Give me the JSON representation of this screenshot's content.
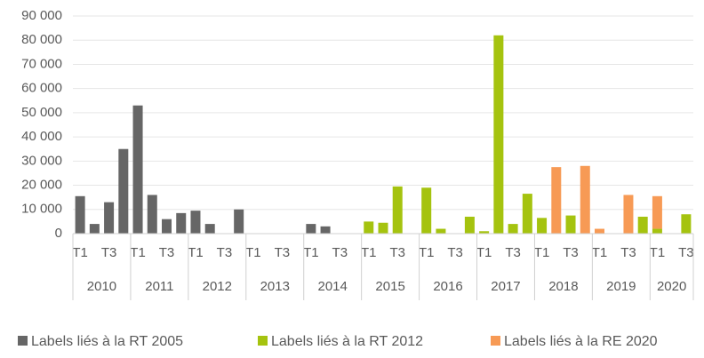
{
  "chart_data": {
    "type": "stacked_bar",
    "categories": [
      "T1",
      null,
      "T3",
      null,
      "T1",
      null,
      "T3",
      null,
      "T1",
      null,
      "T3",
      null,
      "T1",
      null,
      "T3",
      null,
      "T1",
      null,
      "T3",
      null,
      "T1",
      null,
      "T3",
      null,
      "T1",
      null,
      "T3",
      null,
      "T1",
      null,
      "T3",
      null,
      "T1",
      null,
      "T3",
      null,
      "T1",
      null,
      "T3",
      null,
      "T1",
      null,
      "T3"
    ],
    "year_labels": [
      "2010",
      "2011",
      "2012",
      "2013",
      "2014",
      "2015",
      "2016",
      "2017",
      "2018",
      "2019",
      "2020"
    ],
    "series": [
      {
        "name": "Labels liés à la RT 2005",
        "color": "#666666",
        "values": [
          15500,
          4000,
          13000,
          35000,
          53000,
          16000,
          6000,
          8500,
          9500,
          4000,
          0,
          10000,
          0,
          0,
          0,
          0,
          4000,
          3000,
          0,
          0,
          0,
          0,
          0,
          0,
          0,
          0,
          0,
          0,
          0,
          0,
          0,
          0,
          0,
          0,
          0,
          0,
          0,
          0,
          0,
          0,
          0,
          0,
          0
        ]
      },
      {
        "name": "Labels liés à la RT 2012",
        "color": "#a5c30f",
        "values": [
          0,
          0,
          0,
          0,
          0,
          0,
          0,
          0,
          0,
          0,
          0,
          0,
          0,
          0,
          0,
          0,
          0,
          0,
          0,
          0,
          5000,
          4500,
          19500,
          0,
          19000,
          2000,
          0,
          7000,
          1000,
          82000,
          4000,
          16500,
          6500,
          0,
          7500,
          0,
          0,
          0,
          0,
          7000,
          2000,
          0,
          8000
        ]
      },
      {
        "name": "Labels liés à la RE 2020",
        "color": "#f79a55",
        "values": [
          0,
          0,
          0,
          0,
          0,
          0,
          0,
          0,
          0,
          0,
          0,
          0,
          0,
          0,
          0,
          0,
          0,
          0,
          0,
          0,
          0,
          0,
          0,
          0,
          0,
          0,
          0,
          0,
          0,
          0,
          0,
          0,
          0,
          27500,
          0,
          28000,
          2000,
          0,
          16000,
          0,
          13500,
          0,
          0
        ]
      }
    ],
    "ylim": [
      0,
      90000
    ],
    "yticks": [
      0,
      {
        "value": 10000,
        "label": "10 000"
      },
      {
        "value": 20000,
        "label": "20 000"
      },
      {
        "value": 30000,
        "label": "30 000"
      },
      {
        "value": 40000,
        "label": "40 000"
      },
      {
        "value": 50000,
        "label": "50 000"
      },
      {
        "value": 60000,
        "label": "60 000"
      },
      {
        "value": 70000,
        "label": "70 000"
      },
      {
        "value": 80000,
        "label": "80 000"
      },
      {
        "value": 90000,
        "label": "90 000"
      }
    ],
    "grid": true,
    "legend": "bottom"
  }
}
